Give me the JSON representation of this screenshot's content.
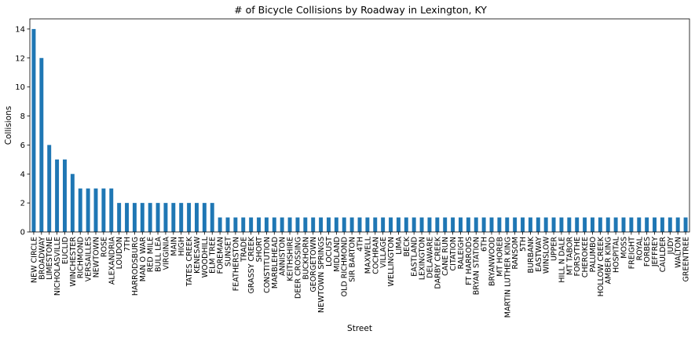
{
  "chart_data": {
    "type": "bar",
    "title": "# of Bicycle Collisions by Roadway in Lexington, KY",
    "xlabel": "Street",
    "ylabel": "Collisions",
    "ylim": [
      0,
      14.7
    ],
    "yticks": [
      0,
      2,
      4,
      6,
      8,
      10,
      12,
      14
    ],
    "grid": false,
    "bar_color": "#1f77b4",
    "categories": [
      "NEW CIRCLE",
      "BROADWAY",
      "LIMESTONE",
      "NICHOLASVILLE",
      "EUCLID",
      "WINCHESTER",
      "RICHMOND",
      "VERSAILLES",
      "NEWTOWN",
      "ROSE",
      "ALEXANDRIA",
      "LOUDON",
      "7TH",
      "HARRODSBURG",
      "MAN O WAR",
      "RED MILE",
      "BULL LEA",
      "VIRGINIA",
      "MAIN",
      "HIGH",
      "TATES CREEK",
      "KENESAW",
      "WOODHILL",
      "ELM TREE",
      "FOREMAN",
      "SUNSET",
      "FEATHERSTON",
      "TRADE",
      "GRASSY CREEK",
      "SHORT",
      "CONSTITUTION",
      "MARBLEHEAD",
      "ANNISTON",
      "KEITHSHIRE",
      "DEER CROSSING",
      "BUCKHORN",
      "GEORGETOWN",
      "NEWTOWN SPRINGS",
      "LOCUST",
      "MIDLAND",
      "OLD RICHMOND",
      "SIR BARTON",
      "4TH",
      "MAXWELL",
      "COCHRAN",
      "VILLAGE",
      "WELLINGTON",
      "LIMA",
      "BECK",
      "EASTLAND",
      "LEXINGTON",
      "DELAWARE",
      "DARBY CREEK",
      "CANE RUN",
      "CITATION",
      "RALEIGH",
      "FT HARRODS",
      "BRYAN STATION",
      "6TH",
      "BRYANWOOD",
      "MT HOREB",
      "MARTIN LUTHER KING",
      "RANSOM",
      "5TH",
      "BURBANK",
      "EASTWAY",
      "WINSLOW",
      "UPPER",
      "HILL N DALE",
      "MT TABOR",
      "FORSYTHE",
      "CHEROKEE",
      "PALUMBO",
      "HOLLOW CREEK",
      "AMBER KING",
      "HOSPITAL",
      "MOSS",
      "FREIGHT",
      "ROYAL",
      "FORBES",
      "JEFFREY",
      "CAULDER",
      "JUDY",
      "WALTON",
      "GREENTREE"
    ],
    "values": [
      14,
      12,
      6,
      5,
      5,
      4,
      3,
      3,
      3,
      3,
      3,
      2,
      2,
      2,
      2,
      2,
      2,
      2,
      2,
      2,
      2,
      2,
      2,
      2,
      1,
      1,
      1,
      1,
      1,
      1,
      1,
      1,
      1,
      1,
      1,
      1,
      1,
      1,
      1,
      1,
      1,
      1,
      1,
      1,
      1,
      1,
      1,
      1,
      1,
      1,
      1,
      1,
      1,
      1,
      1,
      1,
      1,
      1,
      1,
      1,
      1,
      1,
      1,
      1,
      1,
      1,
      1,
      1,
      1,
      1,
      1,
      1,
      1,
      1,
      1,
      1,
      1,
      1,
      1,
      1,
      1,
      1,
      1,
      1,
      1
    ]
  }
}
